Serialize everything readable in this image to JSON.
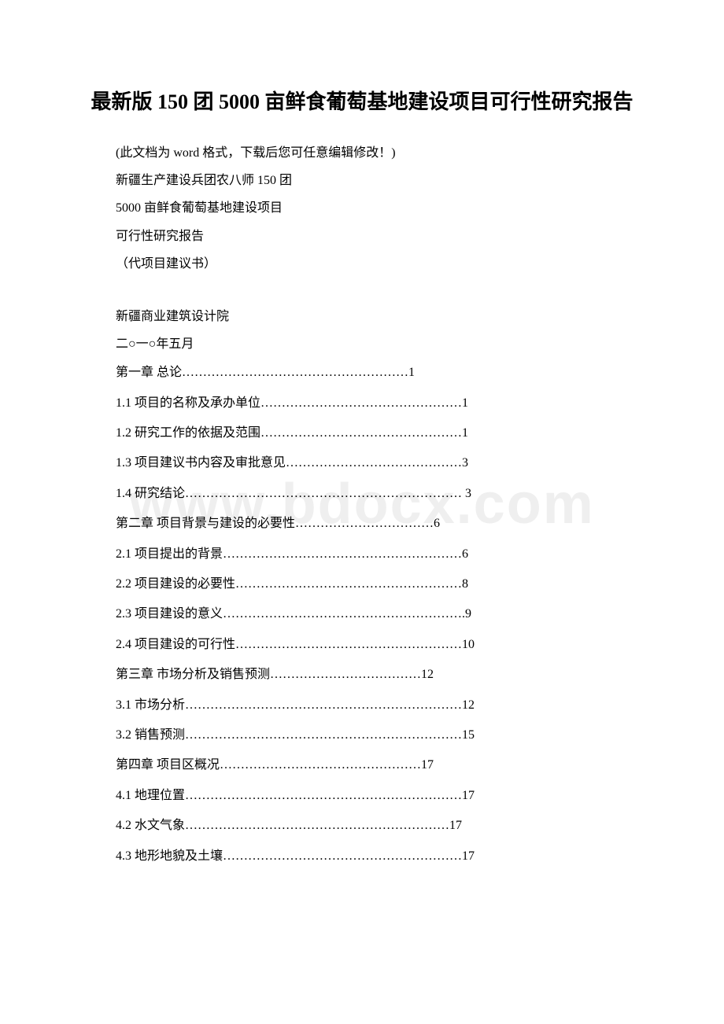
{
  "watermark_text": "www.bdocx.com",
  "title": "最新版 150 团 5000 亩鲜食葡萄基地建设项目可行性研究报告",
  "preamble": [
    "(此文档为 word 格式，下载后您可任意编辑修改！)",
    "新疆生产建设兵团农八师 150 团",
    "5000 亩鲜食葡萄基地建设项目",
    "可行性研究报告",
    "（代项目建议书）"
  ],
  "preamble2": [
    "新疆商业建筑设计院",
    "二○一○年五月"
  ],
  "toc": [
    "第一章 总论………………………………………………1",
    "1.1 项目的名称及承办单位…………………………………………1",
    "1.2 研究工作的依据及范围…………………………………………1",
    "1.3 项目建议书内容及审批意见……………………………………3",
    "1.4 研究结论………………………………………………………… 3",
    "第二章 项目背景与建设的必要性……………………………6",
    "2.1 项目提出的背景…………………………………………………6",
    "2.2 项目建设的必要性………………………………………………8",
    "2.3 项目建设的意义………………………………………………….9",
    "2.4 项目建设的可行性………………………………………………10",
    "第三章 市场分析及销售预测………………………………12",
    "3.1 市场分析…………………………………………………………12",
    "3.2 销售预测…………………………………………………………15",
    "第四章 项目区概况…………………………………………17",
    "4.1 地理位置…………………………………………………………17",
    "4.2 水文气象………………………………………………………17",
    "4.3 地形地貌及土壤…………………………………………………17"
  ],
  "colors": {
    "background": "#ffffff",
    "text": "#000000",
    "watermark": "#efefef"
  },
  "typography": {
    "title_fontsize": 26,
    "body_fontsize": 16,
    "font_family": "SimSun"
  }
}
